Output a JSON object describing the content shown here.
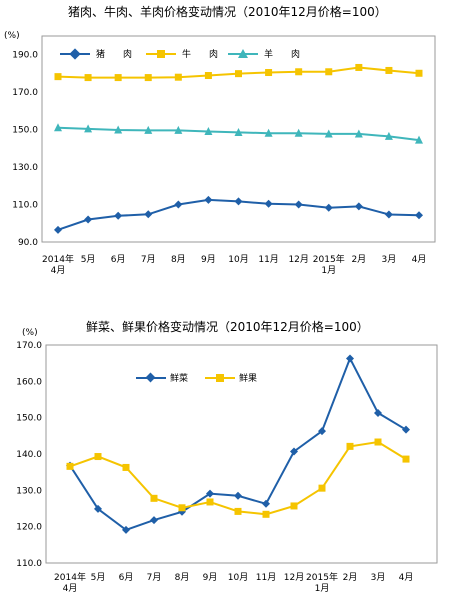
{
  "chart_data": [
    {
      "type": "line",
      "title": "猪肉、牛肉、羊肉价格变动情况（2010年12月价格=100）",
      "ylabel": "(%)",
      "ylim": [
        90,
        200
      ],
      "yticks": [
        "190.0",
        "170.0",
        "150.0",
        "130.0",
        "110.0",
        "90.0"
      ],
      "categories": [
        "2014年 4月",
        "5月",
        "6月",
        "7月",
        "8月",
        "9月",
        "10月",
        "11月",
        "12月",
        "2015年 1月",
        "2月",
        "3月",
        "4月"
      ],
      "legend_position": "top",
      "series": [
        {
          "name": "猪　　肉",
          "color": "#1f5fa8",
          "marker": "diamond",
          "values": [
            96.5,
            102.0,
            104.0,
            104.8,
            110.0,
            112.5,
            111.7,
            110.4,
            110.0,
            108.3,
            109.0,
            104.7,
            104.3
          ]
        },
        {
          "name": "牛　　肉",
          "color": "#f5c400",
          "marker": "square",
          "values": [
            178.3,
            177.8,
            177.8,
            177.8,
            178.0,
            178.9,
            179.9,
            180.5,
            180.9,
            180.9,
            183.2,
            181.6,
            180.1
          ]
        },
        {
          "name": "羊　　肉",
          "color": "#3fb6bb",
          "marker": "triangle",
          "values": [
            151.0,
            150.4,
            149.8,
            149.6,
            149.6,
            149.0,
            148.5,
            148.1,
            148.1,
            147.7,
            147.7,
            146.4,
            144.4
          ]
        }
      ]
    },
    {
      "type": "line",
      "title": "鲜菜、鲜果价格变动情况（2010年12月价格=100）",
      "ylabel": "(%)",
      "ylim": [
        110,
        170
      ],
      "yticks": [
        "170.0",
        "160.0",
        "150.0",
        "140.0",
        "130.0",
        "120.0",
        "110.0"
      ],
      "categories": [
        "2014年 4月",
        "5月",
        "6月",
        "7月",
        "8月",
        "9月",
        "10月",
        "11月",
        "12月",
        "2015年 1月",
        "2月",
        "3月",
        "4月"
      ],
      "legend_position": "top-left",
      "series": [
        {
          "name": "鲜菜",
          "color": "#1f5fa8",
          "marker": "diamond",
          "values": [
            136.8,
            124.9,
            119.1,
            121.8,
            124.1,
            129.1,
            128.5,
            126.3,
            140.7,
            146.3,
            166.3,
            151.3,
            146.7
          ]
        },
        {
          "name": "鲜果",
          "color": "#f5c400",
          "marker": "square",
          "values": [
            136.6,
            139.3,
            136.3,
            127.8,
            125.2,
            126.8,
            124.2,
            123.4,
            125.7,
            130.6,
            142.1,
            143.3,
            138.6
          ]
        }
      ]
    }
  ]
}
